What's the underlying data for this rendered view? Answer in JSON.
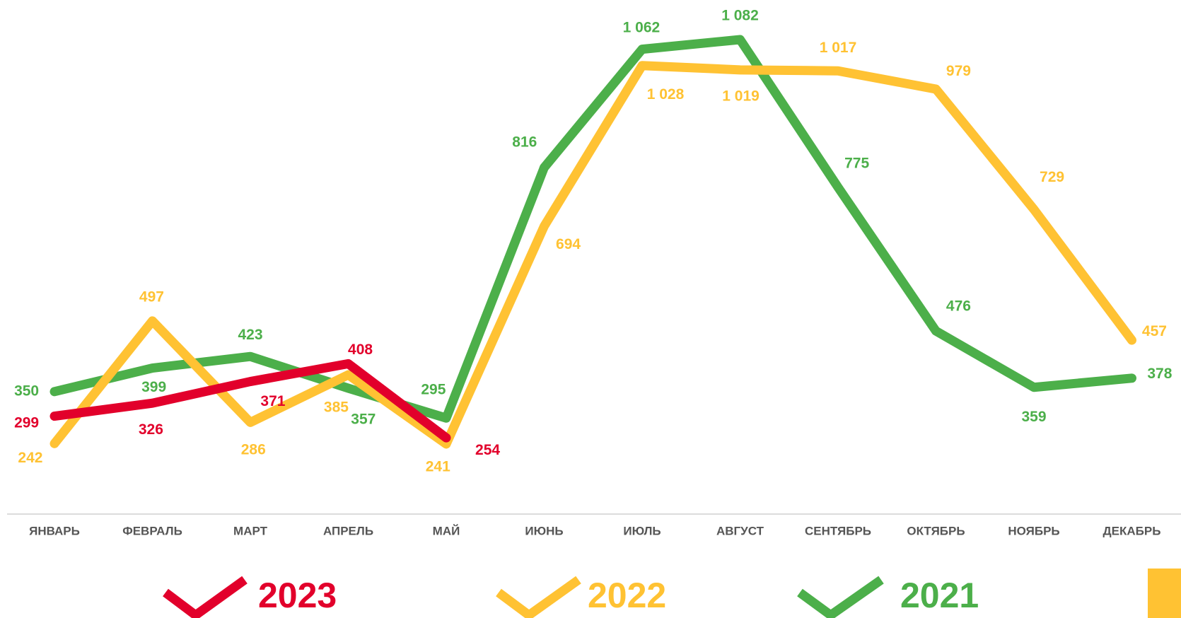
{
  "chart_data": {
    "type": "line",
    "categories": [
      "ЯНВАРЬ",
      "ФЕВРАЛЬ",
      "МАРТ",
      "АПРЕЛЬ",
      "МАЙ",
      "ИЮНЬ",
      "ИЮЛЬ",
      "АВГУСТ",
      "СЕНТЯБРЬ",
      "ОКТЯБРЬ",
      "НОЯБРЬ",
      "ДЕКАБРЬ"
    ],
    "series": [
      {
        "name": "2023",
        "color": "#e2002b",
        "values": [
          299,
          326,
          371,
          408,
          254,
          null,
          null,
          null,
          null,
          null,
          null,
          null
        ]
      },
      {
        "name": "2022",
        "color": "#ffc233",
        "values": [
          242,
          497,
          286,
          385,
          241,
          694,
          1028,
          1019,
          1017,
          979,
          729,
          457
        ],
        "value_labels": [
          "242",
          "497",
          "286",
          "385",
          "241",
          "694",
          "1 028",
          "1 019",
          "1 017",
          "979",
          "729",
          "457"
        ]
      },
      {
        "name": "2021",
        "color": "#4caf4a",
        "values": [
          350,
          399,
          423,
          357,
          295,
          816,
          1062,
          1082,
          775,
          476,
          359,
          378
        ],
        "value_labels": [
          "350",
          "399",
          "423",
          "357",
          "295",
          "816",
          "1 062",
          "1 082",
          "775",
          "476",
          "359",
          "378"
        ]
      }
    ]
  }
}
